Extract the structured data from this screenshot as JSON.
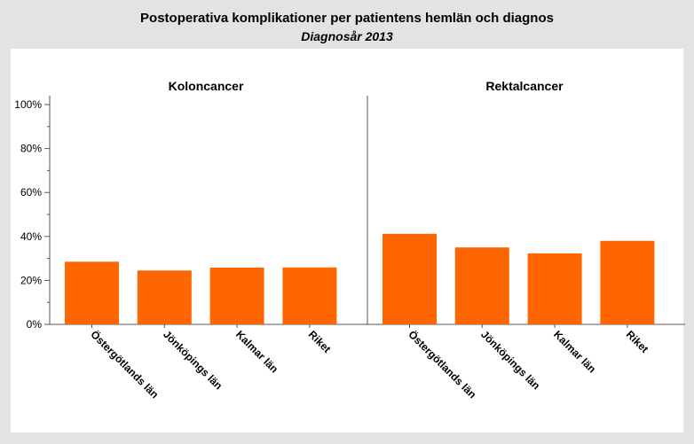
{
  "header": {
    "title": "Postoperativa komplikationer per patientens hemlän och diagnos",
    "subtitle": "Diagnosår 2013"
  },
  "colors": {
    "bar": "#ff6600",
    "axis": "#555555",
    "page_background": "#e3e3e3",
    "plot_background": "#ffffff"
  },
  "chart_data": [
    {
      "type": "bar",
      "title": "Koloncancer",
      "categories": [
        "Östergötlands län",
        "Jönköpings län",
        "Kalmar län",
        "Riket"
      ],
      "values": [
        28.5,
        24.5,
        25.8,
        25.9
      ],
      "ylim": [
        0,
        100
      ],
      "yticks": [
        0,
        20,
        40,
        60,
        80,
        100
      ],
      "ytick_labels": [
        "0%",
        "20%",
        "40%",
        "60%",
        "80%",
        "100%"
      ],
      "grid": false
    },
    {
      "type": "bar",
      "title": "Rektalcancer",
      "categories": [
        "Östergötlands län",
        "Jönköpings län",
        "Kalmar län",
        "Riket"
      ],
      "values": [
        41.2,
        35.0,
        32.3,
        38.0
      ],
      "ylim": [
        0,
        100
      ],
      "grid": false
    }
  ]
}
